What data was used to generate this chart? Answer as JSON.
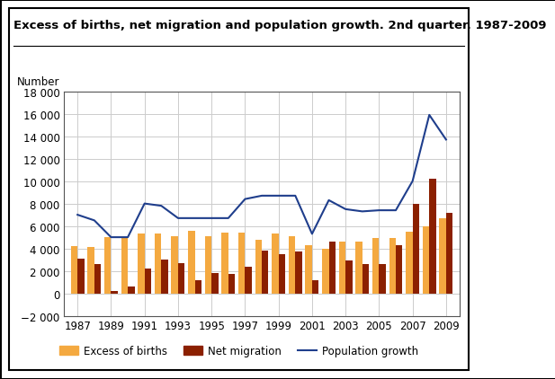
{
  "title": "Excess of births, net migration and population growth. 2nd quarter. 1987-2009",
  "ylabel": "Number",
  "years": [
    1987,
    1988,
    1989,
    1990,
    1991,
    1992,
    1993,
    1994,
    1995,
    1996,
    1997,
    1998,
    1999,
    2000,
    2001,
    2002,
    2003,
    2004,
    2005,
    2006,
    2007,
    2008,
    2009
  ],
  "excess_births": [
    4200,
    4100,
    5000,
    4900,
    5300,
    5300,
    5100,
    5600,
    5100,
    5400,
    5400,
    4800,
    5300,
    5100,
    4300,
    4000,
    4600,
    4600,
    4900,
    4900,
    5500,
    6000,
    6700
  ],
  "net_migration": [
    3100,
    2600,
    200,
    600,
    2200,
    3000,
    2700,
    1200,
    1800,
    1700,
    2400,
    3800,
    3500,
    3700,
    1200,
    4600,
    2900,
    2600,
    2600,
    4300,
    8000,
    10200,
    7200
  ],
  "pop_growth": [
    7000,
    6500,
    5000,
    5000,
    8000,
    7800,
    6700,
    6700,
    6700,
    6700,
    8400,
    8700,
    8700,
    8700,
    5300,
    8300,
    7500,
    7300,
    7400,
    7400,
    10000,
    15900,
    13700
  ],
  "bar_color_births": "#f4a940",
  "bar_color_migration": "#8b2000",
  "line_color": "#1f3e8c",
  "background_color": "#ffffff",
  "grid_color": "#cccccc",
  "ylim": [
    -2000,
    18000
  ],
  "yticks": [
    -2000,
    0,
    2000,
    4000,
    6000,
    8000,
    10000,
    12000,
    14000,
    16000,
    18000
  ],
  "legend_labels": [
    "Excess of births",
    "Net migration",
    "Population growth"
  ],
  "title_fontsize": 9.5,
  "axis_fontsize": 8.5
}
